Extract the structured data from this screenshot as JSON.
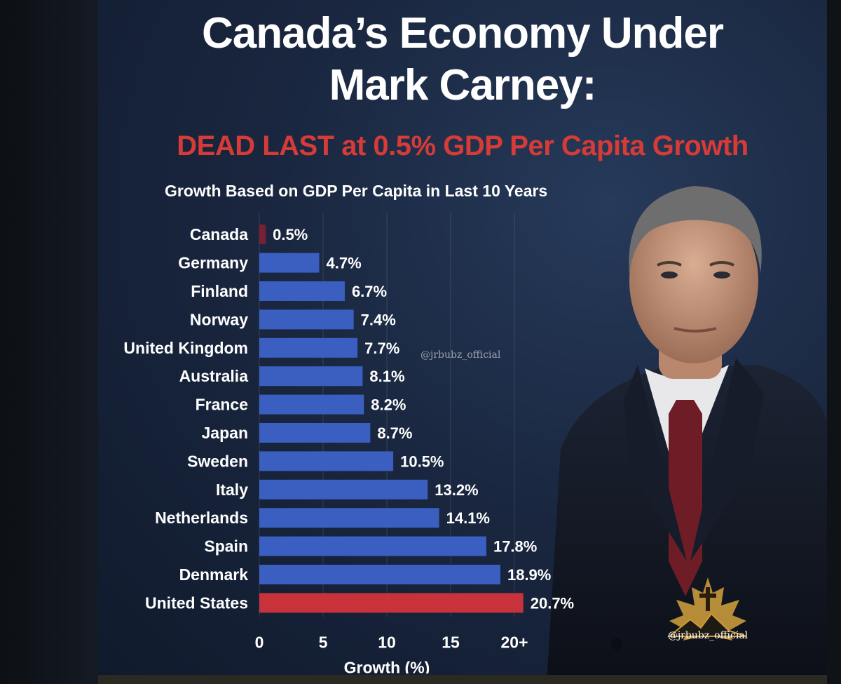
{
  "title_line1": "Canada’s Economy Under",
  "title_line2": "Mark Carney:",
  "subtitle": "DEAD LAST at 0.5% GDP Per Capita Growth",
  "watermark": "@jrbubz_official",
  "logo_text": "@jrbubz_official",
  "colors": {
    "title": "#ffffff",
    "subtitle": "#d63b37",
    "bar_default": "#3a5fc0",
    "bar_canada": "#7a2035",
    "bar_usa": "#c8323a",
    "background": "#1a2740"
  },
  "chart_data": {
    "type": "bar",
    "orientation": "horizontal",
    "title": "Growth Based on GDP Per Capita in Last 10 Years",
    "xlabel": "Growth (%)",
    "ylabel": "",
    "xlim": [
      0,
      20
    ],
    "xticks": [
      "0",
      "5",
      "10",
      "15",
      "20+"
    ],
    "grid": true,
    "categories": [
      "Canada",
      "Germany",
      "Finland",
      "Norway",
      "United Kingdom",
      "Australia",
      "France",
      "Japan",
      "Sweden",
      "Italy",
      "Netherlands",
      "Spain",
      "Denmark",
      "United States"
    ],
    "values": [
      0.5,
      4.7,
      6.7,
      7.4,
      7.7,
      8.1,
      8.2,
      8.7,
      10.5,
      13.2,
      14.1,
      17.8,
      18.9,
      20.7
    ],
    "value_labels": [
      "0.5%",
      "4.7%",
      "6.7%",
      "7.4%",
      "7.7%",
      "8.1%",
      "8.2%",
      "8.7%",
      "10.5%",
      "13.2%",
      "14.1%",
      "17.8%",
      "18.9%",
      "20.7%"
    ]
  }
}
